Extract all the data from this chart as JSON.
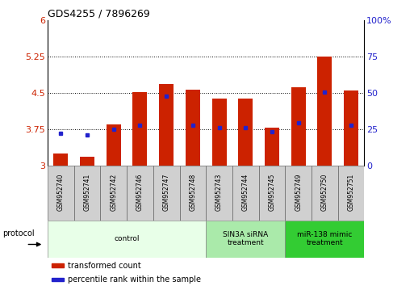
{
  "title": "GDS4255 / 7896269",
  "samples": [
    "GSM952740",
    "GSM952741",
    "GSM952742",
    "GSM952746",
    "GSM952747",
    "GSM952748",
    "GSM952743",
    "GSM952744",
    "GSM952745",
    "GSM952749",
    "GSM952750",
    "GSM952751"
  ],
  "bar_values": [
    3.25,
    3.18,
    3.85,
    4.52,
    4.68,
    4.57,
    4.38,
    4.38,
    3.78,
    4.62,
    5.25,
    4.55
  ],
  "bar_base": 3.0,
  "percentile_values": [
    3.67,
    3.63,
    3.75,
    3.84,
    4.44,
    3.84,
    3.78,
    3.79,
    3.71,
    3.88,
    4.52,
    3.84
  ],
  "ylim_left": [
    3.0,
    6.0
  ],
  "ylim_right": [
    0,
    100
  ],
  "yticks_left": [
    3.0,
    3.75,
    4.5,
    5.25,
    6.0
  ],
  "yticks_right": [
    0,
    25,
    50,
    75,
    100
  ],
  "ytick_labels_left": [
    "3",
    "3.75",
    "4.5",
    "5.25",
    "6"
  ],
  "ytick_labels_right": [
    "0",
    "25",
    "50",
    "75",
    "100%"
  ],
  "bar_color": "#cc2200",
  "percentile_color": "#2222cc",
  "groups": [
    {
      "label": "control",
      "start": 0,
      "end": 6,
      "color": "#e8ffe8"
    },
    {
      "label": "SIN3A siRNA\ntreatment",
      "start": 6,
      "end": 9,
      "color": "#aaeaaa"
    },
    {
      "label": "miR-138 mimic\ntreatment",
      "start": 9,
      "end": 12,
      "color": "#33cc33"
    }
  ],
  "protocol_label": "protocol",
  "legend_items": [
    {
      "label": "transformed count",
      "color": "#cc2200"
    },
    {
      "label": "percentile rank within the sample",
      "color": "#2222cc"
    }
  ],
  "tick_label_color_left": "#cc2200",
  "tick_label_color_right": "#2222cc",
  "bar_width": 0.55
}
